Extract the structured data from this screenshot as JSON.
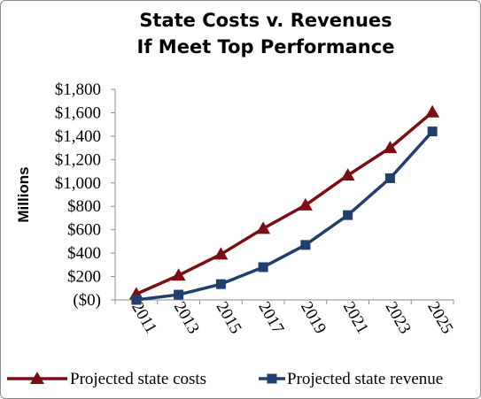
{
  "chart_data": {
    "type": "line",
    "title": [
      "State Costs v. Revenues",
      "If Meet Top Performance"
    ],
    "xlabel": "",
    "ylabel": "Millions",
    "categories": [
      "2011",
      "2013",
      "2015",
      "2017",
      "2019",
      "2021",
      "2023",
      "2025"
    ],
    "y_ticks": [
      "($0)",
      "$200",
      "$400",
      "$600",
      "$800",
      "$1,000",
      "$1,200",
      "$1,400",
      "$1,600",
      "$1,800"
    ],
    "ylim": [
      0,
      1800
    ],
    "grid": false,
    "legend_position": "bottom",
    "series": [
      {
        "name": "Projected state costs",
        "marker": "triangle",
        "color": "#7b0e12",
        "values": [
          50,
          210,
          390,
          610,
          810,
          1065,
          1300,
          1605
        ]
      },
      {
        "name": "Projected state revenue",
        "marker": "square",
        "color": "#1f3f6e",
        "values": [
          0,
          45,
          135,
          280,
          470,
          725,
          1040,
          1440
        ]
      }
    ]
  }
}
